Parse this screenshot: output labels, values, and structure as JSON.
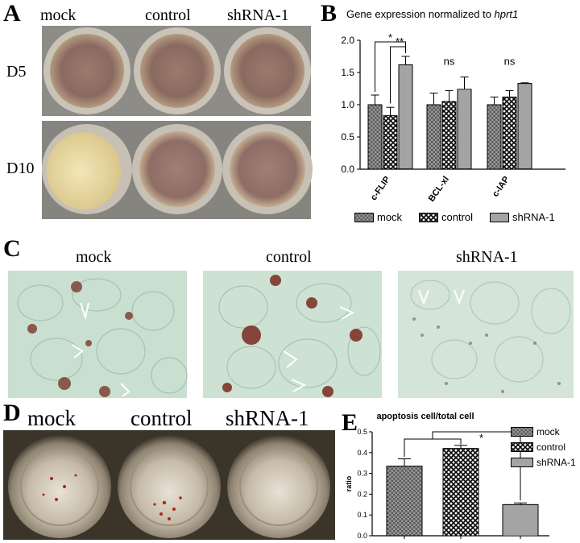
{
  "panelA": {
    "letter": "A",
    "columns": [
      "mock",
      "control",
      "shRNA-1"
    ],
    "rows": [
      "D5",
      "D10"
    ]
  },
  "panelB": {
    "letter": "B",
    "title_main": "Gene expression normalized to ",
    "title_gene": "hprt1",
    "legend": [
      "mock",
      "control",
      "shRNA-1"
    ],
    "significance": [
      "*",
      "**",
      "ns",
      "ns"
    ]
  },
  "panelC": {
    "letter": "C",
    "labels": [
      "mock",
      "control",
      "shRNA-1"
    ]
  },
  "panelD": {
    "letter": "D",
    "labels": [
      "mock",
      "control",
      "shRNA-1"
    ]
  },
  "panelE": {
    "letter": "E",
    "significance": "*"
  },
  "chart_data": [
    {
      "type": "bar",
      "title": "Gene expression normalized to hprt1",
      "categories": [
        "c-FLIP",
        "BCL-xl",
        "c-IAP"
      ],
      "series": [
        {
          "name": "mock",
          "values": [
            1.0,
            1.0,
            1.0
          ],
          "errors": [
            0.15,
            0.18,
            0.12
          ]
        },
        {
          "name": "control",
          "values": [
            0.83,
            1.05,
            1.12
          ],
          "errors": [
            0.13,
            0.17,
            0.1
          ]
        },
        {
          "name": "shRNA-1",
          "values": [
            1.62,
            1.24,
            1.33
          ],
          "errors": [
            0.13,
            0.19,
            0.01
          ]
        }
      ],
      "ylim": [
        0,
        2.0
      ],
      "yticks": [
        "0.0",
        "0.5",
        "1.0",
        "1.5",
        "2.0"
      ],
      "legend_position": "bottom"
    },
    {
      "type": "bar",
      "title": "apoptosis cell/total cell",
      "categories": [
        "mock",
        "control",
        "shRNA-1"
      ],
      "values": [
        0.335,
        0.42,
        0.15
      ],
      "errors": [
        0.035,
        0.015,
        0.008
      ],
      "ylabel": "ratio",
      "ylim": [
        0,
        0.5
      ],
      "yticks": [
        "0.0",
        "0.1",
        "0.2",
        "0.3",
        "0.4",
        "0.5"
      ],
      "legend_position": "right"
    }
  ]
}
